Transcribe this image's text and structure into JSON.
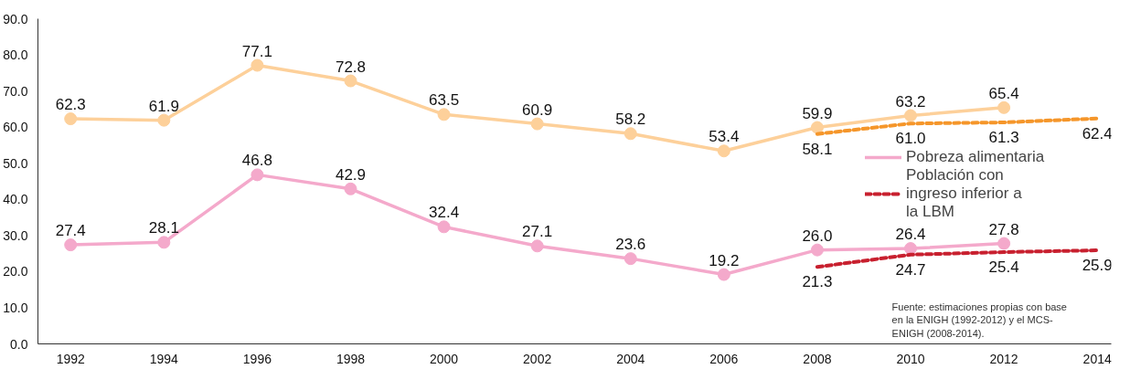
{
  "chart_data": {
    "type": "line",
    "xlim": [
      1991.3,
      2014.3
    ],
    "xticks": [
      1992,
      1994,
      1996,
      1998,
      2000,
      2002,
      2004,
      2006,
      2008,
      2010,
      2012,
      2014
    ],
    "ylim": [
      0,
      90
    ],
    "yticks": [
      {
        "value": 0,
        "label": "0.0"
      },
      {
        "value": 10,
        "label": "10.0"
      },
      {
        "value": 20,
        "label": "20.0"
      },
      {
        "value": 30,
        "label": "30.0"
      },
      {
        "value": 40,
        "label": "40.0"
      },
      {
        "value": 50,
        "label": "50.0"
      },
      {
        "value": 60,
        "label": "60.0"
      },
      {
        "value": 70,
        "label": "70.0"
      },
      {
        "value": 80,
        "label": "80.0"
      },
      {
        "value": 90,
        "label": "90.0"
      }
    ],
    "grid": false,
    "legend": "right",
    "series": [
      {
        "color": "#fdd09a",
        "marker": "circle",
        "line_style": "solid",
        "x": [
          1992,
          1994,
          1996,
          1998,
          2000,
          2002,
          2004,
          2006,
          2008,
          2010,
          2012
        ],
        "values": [
          62.3,
          61.9,
          77.1,
          72.8,
          63.5,
          60.9,
          58.2,
          53.4,
          59.9,
          63.2,
          65.4
        ],
        "value_labels": [
          "62.3",
          "61.9",
          "77.1",
          "72.8",
          "63.5",
          "60.9",
          "58.2",
          "53.4",
          "59.9",
          "63.2",
          "65.4"
        ]
      },
      {
        "name": "Pobreza alimentaria",
        "color": "#f4a9cb",
        "marker": "circle",
        "line_style": "solid",
        "x": [
          1992,
          1994,
          1996,
          1998,
          2000,
          2002,
          2004,
          2006,
          2008,
          2010,
          2012
        ],
        "values": [
          27.4,
          28.1,
          46.8,
          42.9,
          32.4,
          27.1,
          23.6,
          19.2,
          26.0,
          26.4,
          27.8
        ],
        "value_labels": [
          "27.4",
          "28.1",
          "46.8",
          "42.9",
          "32.4",
          "27.1",
          "23.6",
          "19.2",
          "26.0",
          "26.4",
          "27.8"
        ]
      },
      {
        "color": "#f5962a",
        "marker": "none",
        "line_style": "dashed",
        "x": [
          2008,
          2010,
          2012,
          2014
        ],
        "values": [
          58.1,
          61.0,
          61.3,
          62.4
        ],
        "value_labels": [
          "58.1",
          "61.0",
          "61.3",
          "62.4"
        ]
      },
      {
        "name": "Población con ingreso inferior a la LBM",
        "color": "#c8202f",
        "marker": "none",
        "line_style": "dashed",
        "x": [
          2008,
          2010,
          2012,
          2014
        ],
        "values": [
          21.3,
          24.7,
          25.4,
          25.9
        ],
        "value_labels": [
          "21.3",
          "24.7",
          "25.4",
          "25.9"
        ]
      }
    ],
    "annotations": [
      "Fuente: estimaciones propias con base en la ENIGH (1992-2012)  y el MCS-ENIGH (2008-2014)."
    ]
  }
}
